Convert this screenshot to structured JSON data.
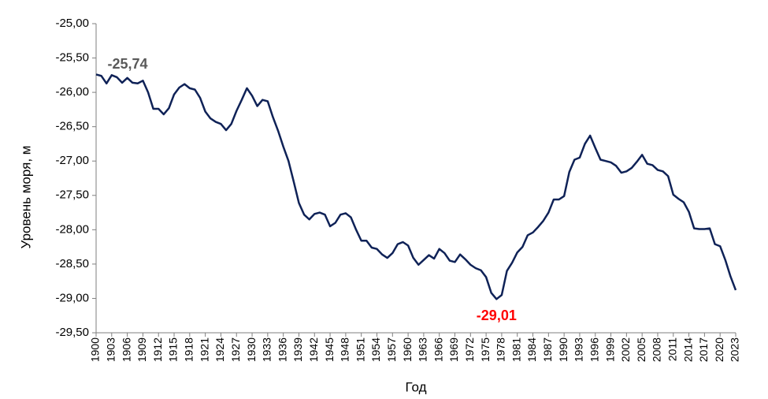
{
  "chart_data": {
    "type": "line",
    "y_label": "Уровень моря, м",
    "x_label": "Год",
    "x": [
      1900,
      1901,
      1902,
      1903,
      1904,
      1905,
      1906,
      1907,
      1908,
      1909,
      1910,
      1911,
      1912,
      1913,
      1914,
      1915,
      1916,
      1917,
      1918,
      1919,
      1920,
      1921,
      1922,
      1923,
      1924,
      1925,
      1926,
      1927,
      1928,
      1929,
      1930,
      1931,
      1932,
      1933,
      1934,
      1935,
      1936,
      1937,
      1938,
      1939,
      1940,
      1941,
      1942,
      1943,
      1944,
      1945,
      1946,
      1947,
      1948,
      1949,
      1950,
      1951,
      1952,
      1953,
      1954,
      1955,
      1956,
      1957,
      1958,
      1959,
      1960,
      1961,
      1962,
      1963,
      1964,
      1965,
      1966,
      1967,
      1968,
      1969,
      1970,
      1971,
      1972,
      1973,
      1974,
      1975,
      1976,
      1977,
      1978,
      1979,
      1980,
      1981,
      1982,
      1983,
      1984,
      1985,
      1986,
      1987,
      1988,
      1989,
      1990,
      1991,
      1992,
      1993,
      1994,
      1995,
      1996,
      1997,
      1998,
      1999,
      2000,
      2001,
      2002,
      2003,
      2004,
      2005,
      2006,
      2007,
      2008,
      2009,
      2010,
      2011,
      2012,
      2013,
      2014,
      2015,
      2016,
      2017,
      2018,
      2019,
      2020,
      2021,
      2022,
      2023
    ],
    "series": [
      {
        "color": "#0f2257",
        "values": [
          -25.74,
          -25.76,
          -25.87,
          -25.75,
          -25.78,
          -25.86,
          -25.79,
          -25.86,
          -25.87,
          -25.83,
          -26.0,
          -26.24,
          -26.24,
          -26.32,
          -26.23,
          -26.03,
          -25.93,
          -25.88,
          -25.94,
          -25.96,
          -26.08,
          -26.28,
          -26.38,
          -26.43,
          -26.46,
          -26.55,
          -26.46,
          -26.27,
          -26.11,
          -25.94,
          -26.05,
          -26.2,
          -26.11,
          -26.13,
          -26.36,
          -26.56,
          -26.79,
          -27.0,
          -27.3,
          -27.61,
          -27.78,
          -27.85,
          -27.77,
          -27.75,
          -27.78,
          -27.95,
          -27.9,
          -27.78,
          -27.76,
          -27.82,
          -28.0,
          -28.16,
          -28.16,
          -28.26,
          -28.28,
          -28.36,
          -28.41,
          -28.34,
          -28.21,
          -28.18,
          -28.23,
          -28.41,
          -28.51,
          -28.44,
          -28.37,
          -28.42,
          -28.28,
          -28.34,
          -28.45,
          -28.47,
          -28.36,
          -28.43,
          -28.51,
          -28.56,
          -28.59,
          -28.69,
          -28.92,
          -29.01,
          -28.95,
          -28.6,
          -28.48,
          -28.33,
          -28.25,
          -28.08,
          -28.04,
          -27.96,
          -27.87,
          -27.75,
          -27.56,
          -27.56,
          -27.51,
          -27.16,
          -26.98,
          -26.95,
          -26.75,
          -26.63,
          -26.81,
          -26.98,
          -27.0,
          -27.02,
          -27.07,
          -27.17,
          -27.15,
          -27.1,
          -27.01,
          -26.91,
          -27.04,
          -27.06,
          -27.13,
          -27.15,
          -27.22,
          -27.49,
          -27.55,
          -27.6,
          -27.74,
          -27.98,
          -27.99,
          -27.99,
          -27.98,
          -28.21,
          -28.24,
          -28.44,
          -28.68,
          -28.88
        ]
      }
    ],
    "annotations": [
      {
        "text": "-25,74",
        "x": 1900,
        "color": "#595959"
      },
      {
        "text": "-29,01",
        "x": 1977,
        "color": "#ff0000"
      }
    ],
    "xlim": [
      1900,
      2023
    ],
    "xticks": [
      1900,
      1903,
      1906,
      1909,
      1912,
      1915,
      1918,
      1921,
      1924,
      1927,
      1930,
      1933,
      1936,
      1939,
      1942,
      1945,
      1948,
      1951,
      1954,
      1957,
      1960,
      1963,
      1966,
      1969,
      1972,
      1975,
      1978,
      1981,
      1984,
      1987,
      1990,
      1993,
      1996,
      1999,
      2002,
      2005,
      2008,
      2011,
      2014,
      2017,
      2020,
      2023
    ],
    "ylim": [
      -29.5,
      -25
    ],
    "yticks": [
      {
        "value": -29.5,
        "label": "-29,50"
      },
      {
        "value": -29,
        "label": "-29,00"
      },
      {
        "value": -28.5,
        "label": "-28,50"
      },
      {
        "value": -28,
        "label": "-28,00"
      },
      {
        "value": -27.5,
        "label": "-27,50"
      },
      {
        "value": -27,
        "label": "-27,00"
      },
      {
        "value": -26.5,
        "label": "-26,50"
      },
      {
        "value": -26,
        "label": "-26,00"
      },
      {
        "value": -25.5,
        "label": "-25,50"
      },
      {
        "value": -25,
        "label": "-25,00"
      }
    ],
    "grid": false
  }
}
